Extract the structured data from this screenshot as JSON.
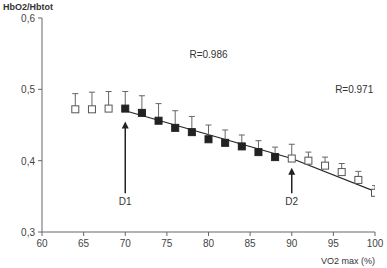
{
  "chart_data": {
    "type": "scatter",
    "y_label": "HbO2/Hbtot",
    "x_label": "VO2 max (%)",
    "xlim": [
      60,
      100
    ],
    "xticks": [
      60,
      65,
      70,
      75,
      80,
      85,
      90,
      95,
      100
    ],
    "ylim": [
      0.3,
      0.6
    ],
    "yticks": [
      {
        "value": 0.3,
        "label": "0,3"
      },
      {
        "value": 0.4,
        "label": "0,4"
      },
      {
        "value": 0.5,
        "label": "0,5"
      },
      {
        "value": 0.6,
        "label": "0,6"
      }
    ],
    "grid": false,
    "series": [
      {
        "type": "scatter",
        "marker": "square-open",
        "color": "#555555",
        "x": [
          64,
          66,
          68,
          90,
          92,
          94,
          96,
          98,
          100
        ],
        "values": [
          0.472,
          0.472,
          0.473,
          0.403,
          0.4,
          0.393,
          0.384,
          0.373,
          0.355
        ],
        "errors": [
          0.022,
          0.024,
          0.024,
          0.02,
          0.012,
          0.012,
          0.012,
          0.012,
          0.01
        ]
      },
      {
        "type": "scatter",
        "marker": "square-filled",
        "color": "#222222",
        "x": [
          70,
          72,
          74,
          76,
          78,
          80,
          82,
          84,
          86,
          88
        ],
        "values": [
          0.473,
          0.467,
          0.456,
          0.446,
          0.44,
          0.43,
          0.425,
          0.42,
          0.412,
          0.405
        ],
        "errors": [
          0.024,
          0.024,
          0.024,
          0.024,
          0.022,
          0.02,
          0.018,
          0.016,
          0.016,
          0.014
        ]
      },
      {
        "type": "line",
        "line_style": "solid",
        "color": "#222222",
        "x": [
          70,
          90
        ],
        "values": [
          0.47,
          0.403
        ]
      },
      {
        "type": "line",
        "line_style": "solid",
        "color": "#222222",
        "x": [
          90,
          100
        ],
        "values": [
          0.403,
          0.357
        ]
      }
    ],
    "annotations": [
      {
        "text": "R=0.986",
        "x": 80,
        "y": 0.55
      },
      {
        "text": "R=0.971",
        "x": 97.5,
        "y": 0.5
      },
      {
        "text": "D1",
        "x": 70,
        "y": 0.343,
        "arrow_y": 0.455
      },
      {
        "text": "D2",
        "x": 90,
        "y": 0.343,
        "arrow_y": 0.39
      }
    ]
  }
}
